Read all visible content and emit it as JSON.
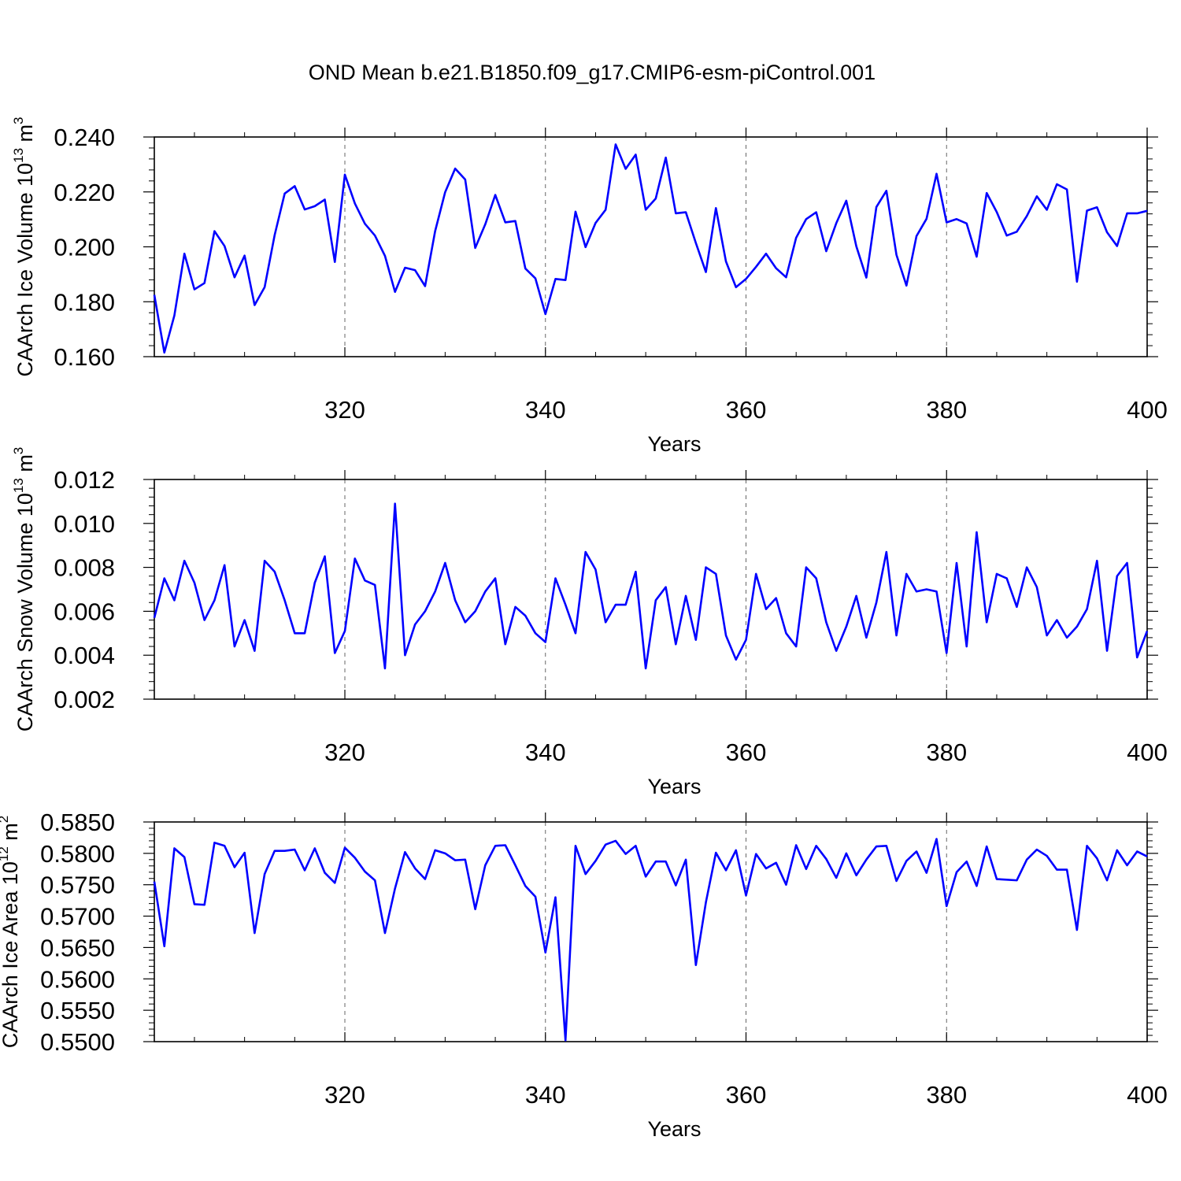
{
  "title": "OND Mean b.e21.B1850.f09_g17.CMIP6-esm-piControl.001",
  "chart_data": [
    {
      "type": "line",
      "ylabel": "CAArch Ice Volume 10",
      "ylabel_exp": "13",
      "ylabel_unit": " m",
      "ylabel_unit_exp": "3",
      "xlabel": "Years",
      "xlim": [
        301,
        400
      ],
      "ylim": [
        0.16,
        0.24
      ],
      "yticks": [
        0.16,
        0.18,
        0.2,
        0.22,
        0.24
      ],
      "ytick_labels": [
        "0.160",
        "0.180",
        "0.200",
        "0.220",
        "0.240"
      ],
      "xticks": [
        320,
        340,
        360,
        380,
        400
      ],
      "xtick_labels": [
        "320",
        "340",
        "360",
        "380",
        "400"
      ],
      "grid": "vertical dashed at major x ticks",
      "color": "#0000ff",
      "x_start": 301,
      "values": [
        0.1825,
        0.1615,
        0.175,
        0.1975,
        0.1845,
        0.1868,
        0.2057,
        0.2003,
        0.1889,
        0.1968,
        0.1788,
        0.1853,
        0.2043,
        0.2194,
        0.2221,
        0.2136,
        0.2148,
        0.2172,
        0.1945,
        0.2263,
        0.2158,
        0.2084,
        0.2041,
        0.1967,
        0.1836,
        0.1924,
        0.1915,
        0.1857,
        0.2057,
        0.2199,
        0.2285,
        0.2245,
        0.1996,
        0.2082,
        0.2189,
        0.2089,
        0.2094,
        0.1921,
        0.1885,
        0.1755,
        0.1883,
        0.1879,
        0.2128,
        0.1999,
        0.2087,
        0.2135,
        0.2373,
        0.2284,
        0.2336,
        0.2135,
        0.2176,
        0.2325,
        0.2122,
        0.2126,
        0.2014,
        0.1908,
        0.2141,
        0.1947,
        0.1853,
        0.1883,
        0.1927,
        0.1975,
        0.1922,
        0.1889,
        0.2033,
        0.2101,
        0.2126,
        0.1984,
        0.2086,
        0.2168,
        0.2002,
        0.1888,
        0.2145,
        0.2204,
        0.1971,
        0.1859,
        0.2039,
        0.2102,
        0.2266,
        0.2089,
        0.2101,
        0.2085,
        0.1964,
        0.2196,
        0.2127,
        0.2041,
        0.2055,
        0.2112,
        0.2184,
        0.2135,
        0.2228,
        0.2209,
        0.1873,
        0.2132,
        0.2144,
        0.2053,
        0.2003,
        0.2122,
        0.2122,
        0.2131
      ]
    },
    {
      "type": "line",
      "ylabel": "CAArch Snow Volume 10",
      "ylabel_exp": "13",
      "ylabel_unit": " m",
      "ylabel_unit_exp": "3",
      "xlabel": "Years",
      "xlim": [
        301,
        400
      ],
      "ylim": [
        0.002,
        0.012
      ],
      "yticks": [
        0.002,
        0.004,
        0.006,
        0.008,
        0.01,
        0.012
      ],
      "ytick_labels": [
        "0.002",
        "0.004",
        "0.006",
        "0.008",
        "0.010",
        "0.012"
      ],
      "xticks": [
        320,
        340,
        360,
        380,
        400
      ],
      "xtick_labels": [
        "320",
        "340",
        "360",
        "380",
        "400"
      ],
      "grid": "vertical dashed at major x ticks",
      "color": "#0000ff",
      "x_start": 301,
      "values": [
        0.0057,
        0.0075,
        0.0065,
        0.0083,
        0.0073,
        0.0056,
        0.0065,
        0.0081,
        0.0044,
        0.0056,
        0.0042,
        0.0083,
        0.0078,
        0.0065,
        0.005,
        0.005,
        0.0073,
        0.0085,
        0.0041,
        0.0051,
        0.0084,
        0.0074,
        0.0072,
        0.0034,
        0.0109,
        0.004,
        0.0054,
        0.006,
        0.0069,
        0.0082,
        0.0065,
        0.0055,
        0.006,
        0.0069,
        0.0075,
        0.0045,
        0.0062,
        0.0058,
        0.005,
        0.0046,
        0.0075,
        0.0063,
        0.005,
        0.0087,
        0.0079,
        0.0055,
        0.0063,
        0.0063,
        0.0078,
        0.0034,
        0.0065,
        0.0071,
        0.0045,
        0.0067,
        0.0047,
        0.008,
        0.0077,
        0.0049,
        0.0038,
        0.0047,
        0.0077,
        0.0061,
        0.0066,
        0.005,
        0.0044,
        0.008,
        0.0075,
        0.0055,
        0.0042,
        0.0053,
        0.0067,
        0.0048,
        0.0064,
        0.0087,
        0.0049,
        0.0077,
        0.0069,
        0.007,
        0.0069,
        0.0041,
        0.0082,
        0.0044,
        0.0096,
        0.0055,
        0.0077,
        0.0075,
        0.0062,
        0.008,
        0.0071,
        0.0049,
        0.0056,
        0.0048,
        0.0053,
        0.0061,
        0.0083,
        0.0042,
        0.0076,
        0.0082,
        0.0039,
        0.0051
      ]
    },
    {
      "type": "line",
      "ylabel": "CAArch Ice Area 10",
      "ylabel_exp": "12",
      "ylabel_unit": " m",
      "ylabel_unit_exp": "2",
      "xlabel": "Years",
      "xlim": [
        301,
        400
      ],
      "ylim": [
        0.55,
        0.585
      ],
      "yticks": [
        0.55,
        0.555,
        0.56,
        0.565,
        0.57,
        0.575,
        0.58,
        0.585
      ],
      "ytick_labels": [
        "0.5500",
        "0.5550",
        "0.5600",
        "0.5650",
        "0.5700",
        "0.5750",
        "0.5800",
        "0.5850"
      ],
      "xticks": [
        320,
        340,
        360,
        380,
        400
      ],
      "xtick_labels": [
        "320",
        "340",
        "360",
        "380",
        "400"
      ],
      "grid": "vertical dashed at major x ticks",
      "color": "#0000ff",
      "x_start": 301,
      "values": [
        0.5755,
        0.5652,
        0.5808,
        0.5794,
        0.5719,
        0.5718,
        0.5817,
        0.5812,
        0.5778,
        0.5801,
        0.5673,
        0.5767,
        0.5804,
        0.5804,
        0.5806,
        0.5773,
        0.5808,
        0.5769,
        0.5753,
        0.5809,
        0.5793,
        0.5771,
        0.5757,
        0.5673,
        0.5744,
        0.5802,
        0.5776,
        0.5759,
        0.5805,
        0.58,
        0.5789,
        0.579,
        0.5711,
        0.5781,
        0.5812,
        0.5813,
        0.5781,
        0.5748,
        0.5731,
        0.5642,
        0.573,
        0.5502,
        0.5812,
        0.5767,
        0.5788,
        0.5814,
        0.582,
        0.5799,
        0.5812,
        0.5763,
        0.5787,
        0.5787,
        0.5749,
        0.579,
        0.5622,
        0.5722,
        0.5801,
        0.5773,
        0.5805,
        0.5733,
        0.5799,
        0.5776,
        0.5785,
        0.575,
        0.5813,
        0.5775,
        0.5812,
        0.5791,
        0.5761,
        0.58,
        0.5765,
        0.579,
        0.5811,
        0.5812,
        0.5756,
        0.5788,
        0.5803,
        0.5769,
        0.5823,
        0.5716,
        0.577,
        0.5787,
        0.5748,
        0.5811,
        0.5759,
        0.5758,
        0.5757,
        0.579,
        0.5806,
        0.5796,
        0.5774,
        0.5774,
        0.5678,
        0.5812,
        0.5792,
        0.5757,
        0.5805,
        0.5781,
        0.5803,
        0.5795
      ]
    }
  ]
}
